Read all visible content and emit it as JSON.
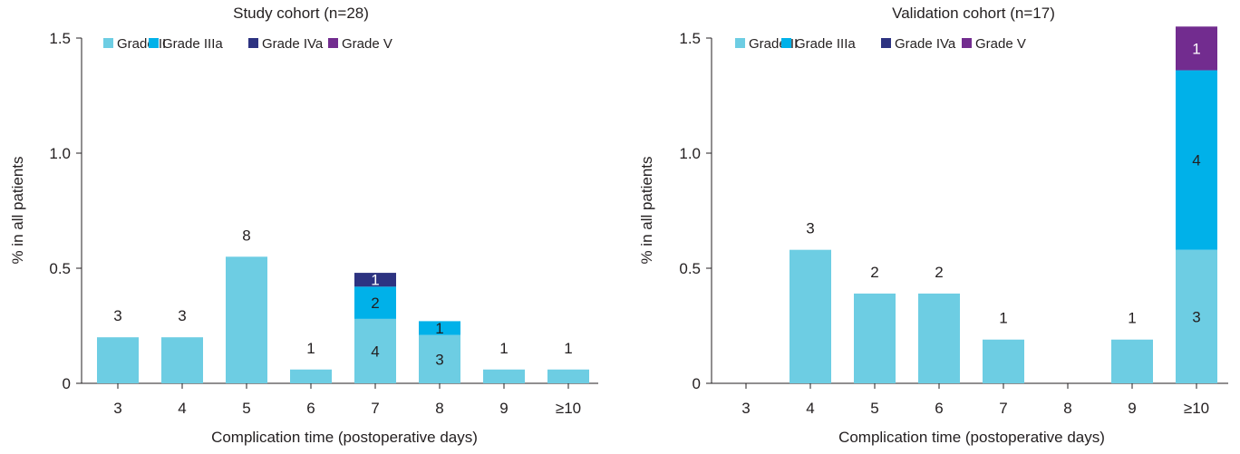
{
  "chart_data": [
    {
      "type": "bar",
      "stacked": true,
      "title": "Study cohort (n=28)",
      "xlabel": "Complication time (postoperative days)",
      "ylabel": "% in all patients",
      "ylim": [
        0,
        1.5
      ],
      "yticks": [
        "0",
        "0.5",
        "1.0",
        "1.5"
      ],
      "categories": [
        "3",
        "4",
        "5",
        "6",
        "7",
        "8",
        "9",
        "≥10"
      ],
      "legend_position": "top",
      "series": [
        {
          "name": "Grade II",
          "color": "#6dcde3",
          "values": [
            0.2,
            0.2,
            0.55,
            0.06,
            0.28,
            0.21,
            0.06,
            0.06
          ],
          "labels": [
            "3",
            "3",
            "8",
            "1",
            "4",
            "3",
            "1",
            "1"
          ]
        },
        {
          "name": "Grade IIIa",
          "color": "#00b1e9",
          "values": [
            0,
            0,
            0,
            0,
            0.14,
            0.06,
            0,
            0
          ],
          "labels": [
            "",
            "",
            "",
            "",
            "2",
            "1",
            "",
            ""
          ]
        },
        {
          "name": "Grade IVa",
          "color": "#2d3381",
          "values": [
            0,
            0,
            0,
            0,
            0.06,
            0,
            0,
            0
          ],
          "labels": [
            "",
            "",
            "",
            "",
            "1",
            "",
            "",
            ""
          ]
        },
        {
          "name": "Grade V",
          "color": "#722c8f",
          "values": [
            0,
            0,
            0,
            0,
            0,
            0,
            0,
            0
          ],
          "labels": [
            "",
            "",
            "",
            "",
            "",
            "",
            "",
            ""
          ]
        }
      ],
      "top_labels": [
        "3",
        "3",
        "8",
        "1",
        "",
        "",
        "1",
        "1"
      ]
    },
    {
      "type": "bar",
      "stacked": true,
      "title": "Validation cohort (n=17)",
      "xlabel": "Complication time (postoperative days)",
      "ylabel": "% in all patients",
      "ylim": [
        0,
        1.5
      ],
      "yticks": [
        "0",
        "0.5",
        "1.0",
        "1.5"
      ],
      "categories": [
        "3",
        "4",
        "5",
        "6",
        "7",
        "8",
        "9",
        "≥10"
      ],
      "legend_position": "top",
      "series": [
        {
          "name": "Grade II",
          "color": "#6dcde3",
          "values": [
            0,
            0.58,
            0.39,
            0.39,
            0.19,
            0,
            0.19,
            0.58
          ],
          "labels": [
            "",
            "3",
            "2",
            "2",
            "1",
            "",
            "1",
            "3"
          ]
        },
        {
          "name": "Grade IIIa",
          "color": "#00b1e9",
          "values": [
            0,
            0,
            0,
            0,
            0,
            0,
            0,
            0.78
          ],
          "labels": [
            "",
            "",
            "",
            "",
            "",
            "",
            "",
            "4"
          ]
        },
        {
          "name": "Grade IVa",
          "color": "#2d3381",
          "values": [
            0,
            0,
            0,
            0,
            0,
            0,
            0,
            0
          ],
          "labels": [
            "",
            "",
            "",
            "",
            "",
            "",
            "",
            ""
          ]
        },
        {
          "name": "Grade V",
          "color": "#722c8f",
          "values": [
            0,
            0,
            0,
            0,
            0,
            0,
            0,
            0.19
          ],
          "labels": [
            "",
            "",
            "",
            "",
            "",
            "",
            "",
            "1"
          ]
        }
      ],
      "top_labels": [
        "",
        "3",
        "2",
        "2",
        "1",
        "",
        "1",
        ""
      ]
    }
  ]
}
